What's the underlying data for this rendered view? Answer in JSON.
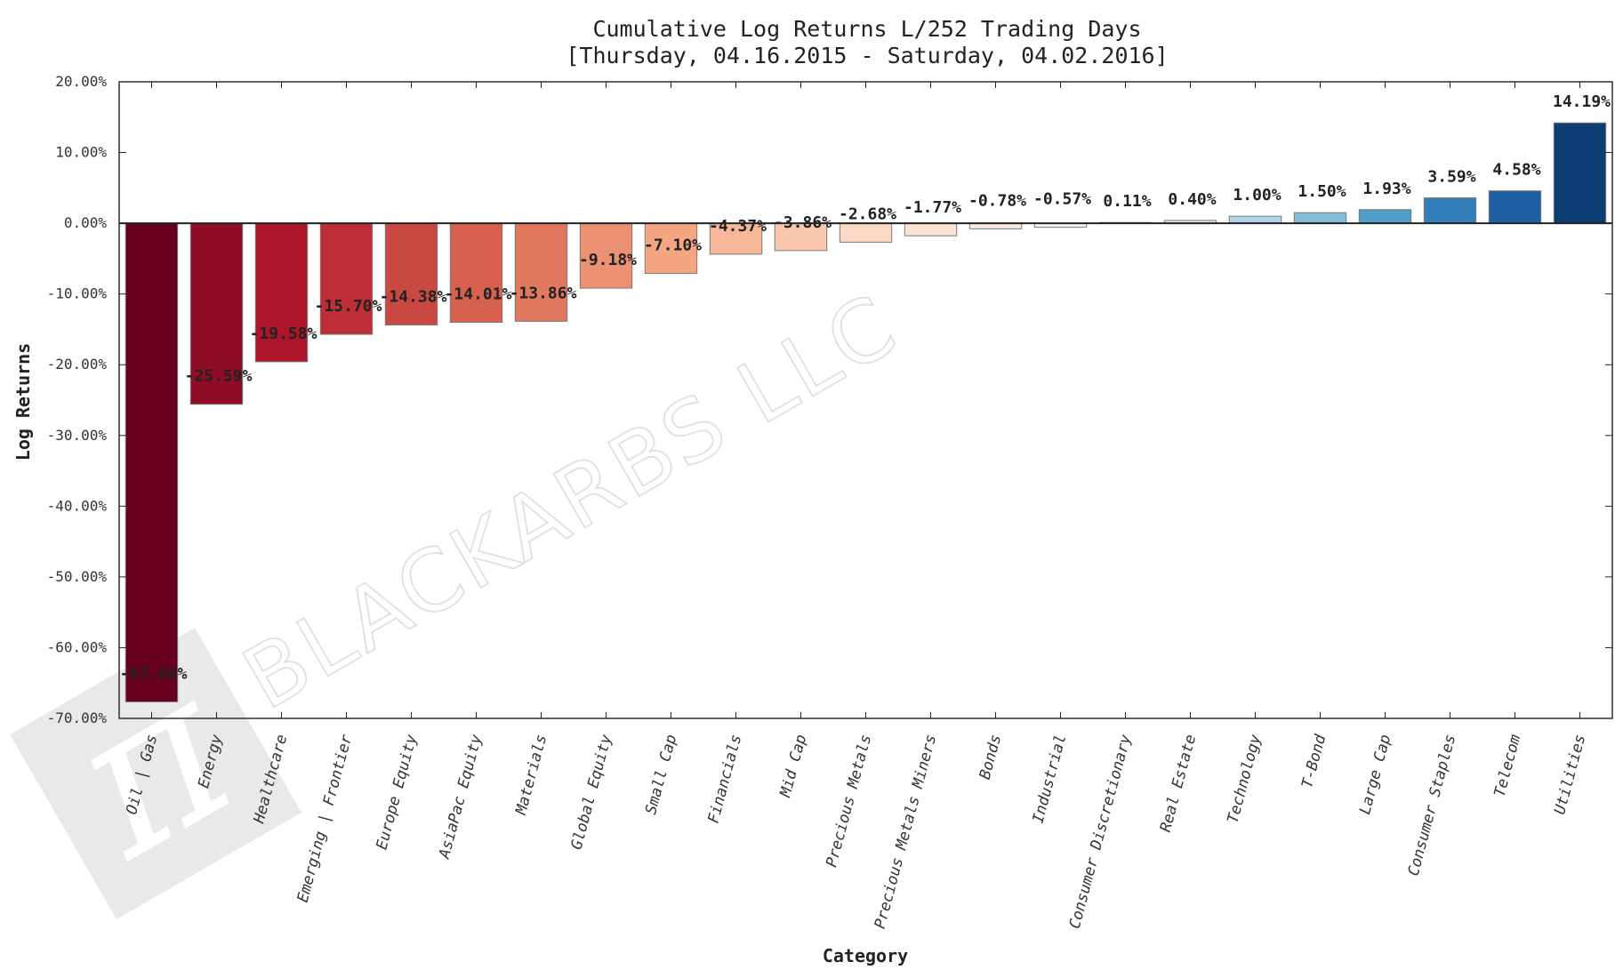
{
  "colors": {
    "negative_scale": [
      "#67001f",
      "#b2182b",
      "#d6604d",
      "#f4a582",
      "#fddbc7",
      "#f7f7f7"
    ],
    "positive_scale": [
      "#f7f7f7",
      "#d1e5f0",
      "#92c5de",
      "#4393c3",
      "#2166ac",
      "#053061"
    ],
    "axis": "#222222",
    "watermark": "#e6e6e6"
  },
  "watermark": {
    "text": "BLACKARBS LLC",
    "logo_icon": "pi-logo-icon"
  },
  "chart_data": {
    "type": "bar",
    "title": "Cumulative Log Returns L/252 Trading Days",
    "subtitle": "[Thursday, 04.16.2015 - Saturday, 04.02.2016]",
    "xlabel": "Category",
    "ylabel": "Log Returns",
    "ylim": [
      -70,
      20
    ],
    "yticks": [
      "20.00%",
      "10.00%",
      "0.00%",
      "-10.00%",
      "-20.00%",
      "-30.00%",
      "-40.00%",
      "-50.00%",
      "-60.00%",
      "-70.00%"
    ],
    "grid": false,
    "legend": "none",
    "categories": [
      "Oil | Gas",
      "Energy",
      "Healthcare",
      "Emerging | Frontier",
      "Europe Equity",
      "AsiaPac Equity",
      "Materials",
      "Global Equity",
      "Small Cap",
      "Financials",
      "Mid Cap",
      "Precious Metals",
      "Precious Metals Miners",
      "Bonds",
      "Industrial",
      "Consumer Discretionary",
      "Real Estate",
      "Technology",
      "T-Bond",
      "Large Cap",
      "Consumer Staples",
      "Telecom",
      "Utilities"
    ],
    "values": [
      -67.66,
      -25.59,
      -19.58,
      -15.7,
      -14.38,
      -14.01,
      -13.86,
      -9.18,
      -7.1,
      -4.37,
      -3.86,
      -2.68,
      -1.77,
      -0.78,
      -0.57,
      0.11,
      0.4,
      1.0,
      1.5,
      1.93,
      3.59,
      4.58,
      14.19
    ],
    "value_labels": [
      "-67.66%",
      "-25.59%",
      "-19.58%",
      "-15.70%",
      "-14.38%",
      "-14.01%",
      "-13.86%",
      "-9.18%",
      "-7.10%",
      "-4.37%",
      "-3.86%",
      "-2.68%",
      "-1.77%",
      "-0.78%",
      "-0.57%",
      "0.11%",
      "0.40%",
      "1.00%",
      "1.50%",
      "1.93%",
      "3.59%",
      "4.58%",
      "14.19%"
    ]
  }
}
